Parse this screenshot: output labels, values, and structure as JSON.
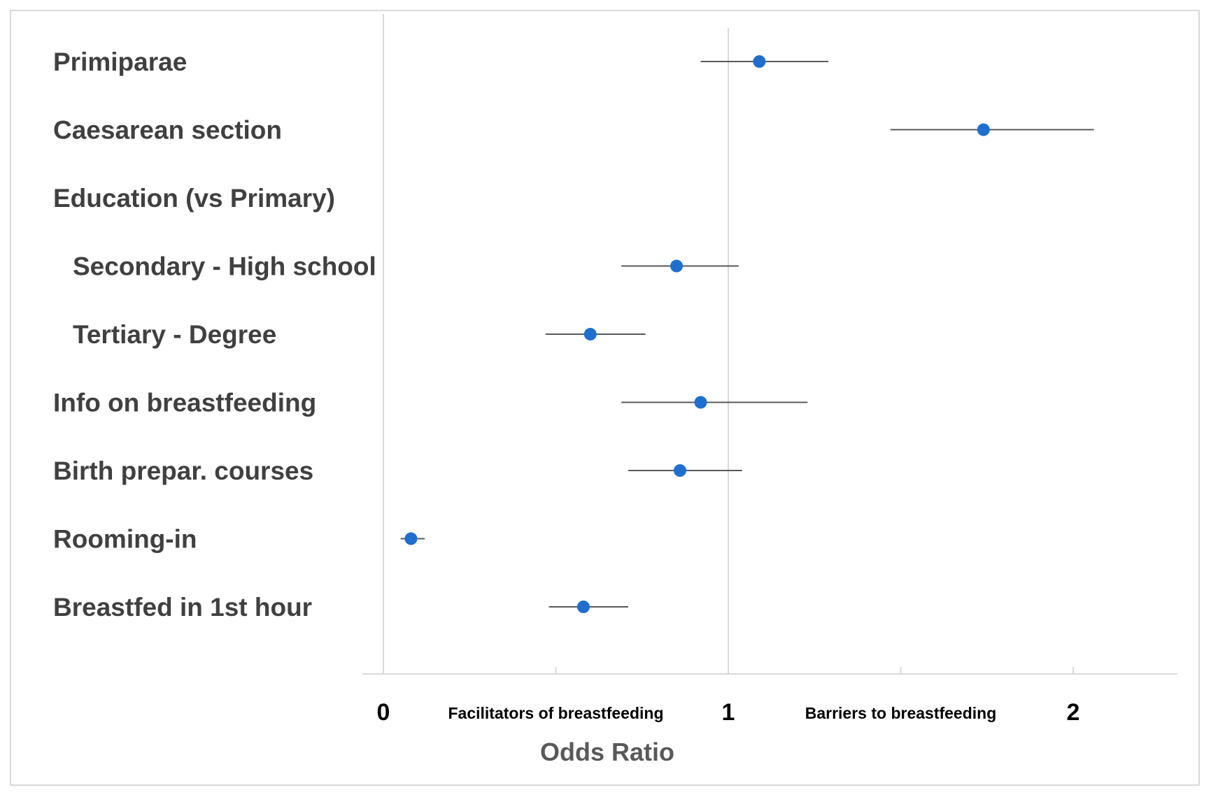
{
  "chart_data": {
    "type": "forest",
    "xlabel": "Odds Ratio",
    "xlim": [
      -0.06,
      2.3
    ],
    "ticks": [
      0,
      0.5,
      1,
      1.5,
      2
    ],
    "tick_labels": [
      {
        "value": 0,
        "label": "0"
      },
      {
        "value": 1,
        "label": "1"
      },
      {
        "value": 2,
        "label": "2"
      }
    ],
    "reference_line": 1,
    "region_labels": [
      {
        "text": "Facilitators of breastfeeding",
        "at": 0.5
      },
      {
        "text": "Barriers to breastfeeding",
        "at": 1.5
      }
    ],
    "point_color": "#1f6fcf",
    "rows": [
      {
        "label": "Primiparae",
        "indent": false,
        "or": 1.09,
        "lower": 0.92,
        "upper": 1.29
      },
      {
        "label": "Caesarean section",
        "indent": false,
        "or": 1.74,
        "lower": 1.47,
        "upper": 2.06
      },
      {
        "label": "Education (vs Primary)",
        "indent": false,
        "or": null,
        "lower": null,
        "upper": null
      },
      {
        "label": "Secondary - High school",
        "indent": true,
        "or": 0.85,
        "lower": 0.69,
        "upper": 1.03
      },
      {
        "label": "Tertiary - Degree",
        "indent": true,
        "or": 0.6,
        "lower": 0.47,
        "upper": 0.76
      },
      {
        "label": "Info on breastfeeding",
        "indent": false,
        "or": 0.92,
        "lower": 0.69,
        "upper": 1.23
      },
      {
        "label": "Birth prepar. courses",
        "indent": false,
        "or": 0.86,
        "lower": 0.71,
        "upper": 1.04
      },
      {
        "label": "Rooming-in",
        "indent": false,
        "or": 0.08,
        "lower": 0.05,
        "upper": 0.12
      },
      {
        "label": "Breastfed in 1st hour",
        "indent": false,
        "or": 0.58,
        "lower": 0.48,
        "upper": 0.71
      }
    ]
  }
}
